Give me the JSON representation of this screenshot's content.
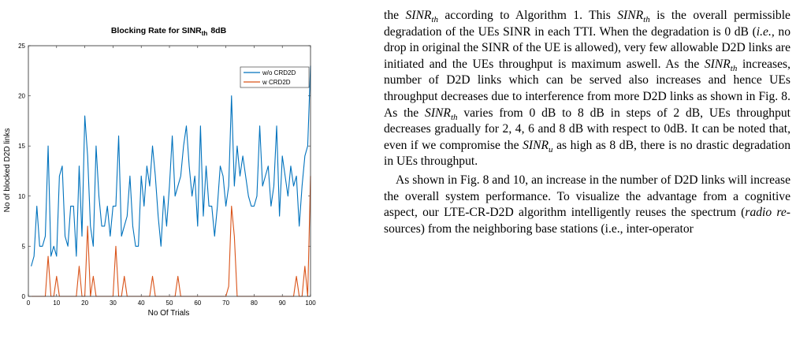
{
  "chart_data": {
    "type": "line",
    "title": "Blocking Rate for SINR",
    "title_sub": "th",
    "title_suffix": "8dB",
    "xlabel": "No Of Trials",
    "ylabel": "No of blocked D2D links",
    "xlim": [
      0,
      100
    ],
    "ylim": [
      0,
      25
    ],
    "xticks": [
      0,
      10,
      20,
      30,
      40,
      50,
      60,
      70,
      80,
      90,
      100
    ],
    "yticks": [
      0,
      5,
      10,
      15,
      20,
      25
    ],
    "grid": false,
    "legend_position": "top-right",
    "series": [
      {
        "name": "w/o CRD2D",
        "color": "#0072BD",
        "x": [
          1,
          2,
          3,
          4,
          5,
          6,
          7,
          8,
          9,
          10,
          11,
          12,
          13,
          14,
          15,
          16,
          17,
          18,
          19,
          20,
          21,
          22,
          23,
          24,
          25,
          26,
          27,
          28,
          29,
          30,
          31,
          32,
          33,
          34,
          35,
          36,
          37,
          38,
          39,
          40,
          41,
          42,
          43,
          44,
          45,
          46,
          47,
          48,
          49,
          50,
          51,
          52,
          53,
          54,
          55,
          56,
          57,
          58,
          59,
          60,
          61,
          62,
          63,
          64,
          65,
          66,
          67,
          68,
          69,
          70,
          71,
          72,
          73,
          74,
          75,
          76,
          77,
          78,
          79,
          80,
          81,
          82,
          83,
          84,
          85,
          86,
          87,
          88,
          89,
          90,
          91,
          92,
          93,
          94,
          95,
          96,
          97,
          98,
          99,
          100
        ],
        "y": [
          3,
          4,
          9,
          5,
          5,
          6,
          15,
          4,
          5,
          4,
          12,
          13,
          6,
          5,
          9,
          9,
          4,
          13,
          6,
          18,
          14,
          7,
          5,
          15,
          10,
          7,
          7,
          9,
          6,
          9,
          9,
          16,
          6,
          7,
          8,
          12,
          7,
          5,
          5,
          12,
          9,
          13,
          11,
          15,
          12,
          8,
          5,
          10,
          7,
          11,
          16,
          10,
          11,
          12,
          15,
          17,
          13,
          10,
          12,
          7,
          17,
          8,
          13,
          9,
          9,
          6,
          9,
          13,
          12,
          9,
          11,
          20,
          11,
          15,
          12,
          14,
          12,
          10,
          9,
          9,
          10,
          17,
          11,
          12,
          13,
          9,
          11,
          17,
          8,
          14,
          12,
          10,
          13,
          11,
          12,
          7,
          11,
          14,
          15,
          23
        ]
      },
      {
        "name": "w CRD2D",
        "color": "#D95319",
        "x": [
          1,
          2,
          3,
          4,
          5,
          6,
          7,
          8,
          9,
          10,
          11,
          12,
          13,
          14,
          15,
          16,
          17,
          18,
          19,
          20,
          21,
          22,
          23,
          24,
          25,
          26,
          27,
          28,
          29,
          30,
          31,
          32,
          33,
          34,
          35,
          36,
          37,
          38,
          39,
          40,
          41,
          42,
          43,
          44,
          45,
          46,
          47,
          48,
          49,
          50,
          51,
          52,
          53,
          54,
          55,
          56,
          57,
          58,
          59,
          60,
          61,
          62,
          63,
          64,
          65,
          66,
          67,
          68,
          69,
          70,
          71,
          72,
          73,
          74,
          75,
          76,
          77,
          78,
          79,
          80,
          81,
          82,
          83,
          84,
          85,
          86,
          87,
          88,
          89,
          90,
          91,
          92,
          93,
          94,
          95,
          96,
          97,
          98,
          99,
          100
        ],
        "y": [
          0,
          0,
          0,
          0,
          0,
          0,
          4,
          0,
          0,
          2,
          0,
          0,
          0,
          0,
          0,
          0,
          0,
          3,
          0,
          0,
          7,
          0,
          2,
          0,
          0,
          0,
          0,
          0,
          0,
          0,
          5,
          0,
          0,
          2,
          0,
          0,
          0,
          0,
          0,
          0,
          0,
          0,
          0,
          2,
          0,
          0,
          0,
          0,
          0,
          0,
          0,
          0,
          2,
          0,
          0,
          0,
          0,
          0,
          0,
          0,
          0,
          0,
          0,
          0,
          0,
          0,
          0,
          0,
          0,
          0,
          1,
          9,
          6,
          0,
          0,
          0,
          0,
          0,
          0,
          0,
          0,
          0,
          0,
          0,
          0,
          0,
          0,
          0,
          0,
          0,
          0,
          0,
          0,
          0,
          2,
          0,
          0,
          3,
          0,
          12
        ]
      }
    ]
  },
  "text": {
    "sinr": "SINR",
    "sub_th": "th",
    "sub_u": "u",
    "p1": {
      "s1": "the",
      "s2": "according to Algorithm 1. This",
      "s3": "is the overall permissible degradation of the UEs SINR in each TTI. When the degradation is 0 dB (",
      "ie": "i.e.,",
      "s4": "no drop in original the SINR of the UE is allowed), very few allowable D2D links are initiated and the UEs throughput is maximum aswell. As the",
      "s5": "increases, number of D2D links which can be served also increases and hence UEs throughput decreases due to interference from more D2D links as shown in Fig. 8. As the",
      "s6": "varies from 0 dB to 8 dB in steps of 2 dB, UEs throughput decreases gradually for 2, 4, 6 and 8 dB with respect to 0dB. It can be noted that, even if we compromise the",
      "s7": "as high as 8 dB, there is no drastic degradation in UEs throughput."
    },
    "p2": {
      "s1": "As shown in Fig. 8 and 10, an increase in the number of D2D links will increase the overall system performance. To visualize the advantage from a cognitive aspect, our LTE-CR-D2D algorithm intelligently reuses the spectrum (",
      "radio": "radio re-",
      "s2": "sources) from the neighboring base stations (i.e., inter-operator"
    }
  }
}
